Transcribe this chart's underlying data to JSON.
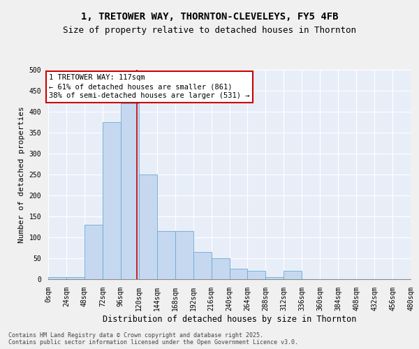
{
  "title_line1": "1, TRETOWER WAY, THORNTON-CLEVELEYS, FY5 4FB",
  "title_line2": "Size of property relative to detached houses in Thornton",
  "xlabel": "Distribution of detached houses by size in Thornton",
  "ylabel": "Number of detached properties",
  "bin_edges": [
    0,
    24,
    48,
    72,
    96,
    120,
    144,
    168,
    192,
    216,
    240,
    264,
    288,
    312,
    336,
    360,
    384,
    408,
    432,
    456,
    480
  ],
  "bar_heights": [
    5,
    5,
    130,
    375,
    420,
    250,
    115,
    115,
    65,
    50,
    25,
    20,
    5,
    20,
    0,
    0,
    0,
    0,
    0,
    0
  ],
  "bar_color": "#c5d8f0",
  "bar_edgecolor": "#6aaad4",
  "property_line_x": 117,
  "property_line_color": "#cc0000",
  "annotation_box_color": "#cc0000",
  "annotation_text": "1 TRETOWER WAY: 117sqm\n← 61% of detached houses are smaller (861)\n38% of semi-detached houses are larger (531) →",
  "ylim": [
    0,
    500
  ],
  "yticks": [
    0,
    50,
    100,
    150,
    200,
    250,
    300,
    350,
    400,
    450,
    500
  ],
  "plot_bg_color": "#e8eef8",
  "fig_bg_color": "#f0f0f0",
  "grid_color": "#ffffff",
  "footer_text": "Contains HM Land Registry data © Crown copyright and database right 2025.\nContains public sector information licensed under the Open Government Licence v3.0.",
  "title_fontsize": 10,
  "subtitle_fontsize": 9,
  "tick_fontsize": 7,
  "ylabel_fontsize": 8,
  "xlabel_fontsize": 8.5,
  "annotation_fontsize": 7.5,
  "footer_fontsize": 6
}
